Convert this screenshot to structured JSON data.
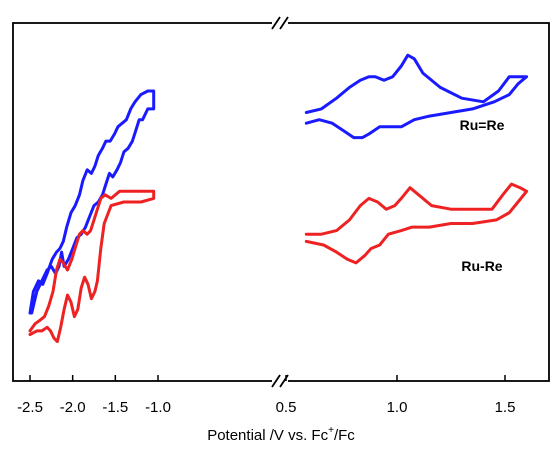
{
  "chart_data": {
    "type": "line",
    "xlabel": "Potential /V vs. Fc",
    "xlabel_sup": "+",
    "xlabel_tail": "/Fc",
    "x_axis_break": true,
    "left_panel": {
      "xlim": [
        -2.5,
        0.5
      ],
      "ticks": [
        {
          "value": -2.5,
          "label": "-2.5"
        },
        {
          "value": -2.0,
          "label": "-2.0"
        },
        {
          "value": -1.5,
          "label": "-1.5"
        },
        {
          "value": -1.0,
          "label": "-1.0"
        }
      ],
      "edge_label": "0.5"
    },
    "right_panel": {
      "xlim": [
        0.5,
        1.6
      ],
      "ticks": [
        {
          "value": 1.0,
          "label": "1.0"
        },
        {
          "value": 1.5,
          "label": "1.5"
        }
      ]
    },
    "series": [
      {
        "name": "Ru=Re",
        "color": "#1a1aff",
        "left_cathodic": [
          [
            -2.5,
            0.81
          ],
          [
            -2.46,
            0.75
          ],
          [
            -2.4,
            0.72
          ],
          [
            -2.35,
            0.73
          ],
          [
            -2.3,
            0.7
          ],
          [
            -2.24,
            0.66
          ],
          [
            -2.19,
            0.64
          ],
          [
            -2.15,
            0.63
          ],
          [
            -2.11,
            0.61
          ],
          [
            -2.07,
            0.57
          ],
          [
            -2.02,
            0.53
          ],
          [
            -1.97,
            0.51
          ],
          [
            -1.92,
            0.48
          ],
          [
            -1.88,
            0.44
          ],
          [
            -1.83,
            0.41
          ],
          [
            -1.78,
            0.42
          ],
          [
            -1.74,
            0.4
          ],
          [
            -1.7,
            0.37
          ],
          [
            -1.65,
            0.35
          ],
          [
            -1.61,
            0.33
          ],
          [
            -1.56,
            0.33
          ],
          [
            -1.51,
            0.31
          ],
          [
            -1.47,
            0.29
          ],
          [
            -1.42,
            0.28
          ],
          [
            -1.37,
            0.27
          ],
          [
            -1.32,
            0.24
          ],
          [
            -1.27,
            0.22
          ],
          [
            -1.2,
            0.2
          ],
          [
            -1.12,
            0.19
          ],
          [
            -1.05,
            0.19
          ]
        ],
        "left_anodic": [
          [
            -1.05,
            0.24
          ],
          [
            -1.12,
            0.24
          ],
          [
            -1.18,
            0.27
          ],
          [
            -1.22,
            0.27
          ],
          [
            -1.26,
            0.3
          ],
          [
            -1.3,
            0.33
          ],
          [
            -1.35,
            0.35
          ],
          [
            -1.4,
            0.36
          ],
          [
            -1.44,
            0.39
          ],
          [
            -1.48,
            0.41
          ],
          [
            -1.53,
            0.43
          ],
          [
            -1.57,
            0.42
          ],
          [
            -1.61,
            0.45
          ],
          [
            -1.65,
            0.48
          ],
          [
            -1.7,
            0.5
          ],
          [
            -1.75,
            0.51
          ],
          [
            -1.8,
            0.54
          ],
          [
            -1.85,
            0.57
          ],
          [
            -1.9,
            0.59
          ],
          [
            -1.95,
            0.6
          ],
          [
            -2.0,
            0.63
          ],
          [
            -2.05,
            0.66
          ],
          [
            -2.1,
            0.68
          ],
          [
            -2.13,
            0.64
          ],
          [
            -2.16,
            0.68
          ],
          [
            -2.2,
            0.7
          ],
          [
            -2.25,
            0.68
          ],
          [
            -2.3,
            0.69
          ],
          [
            -2.36,
            0.72
          ],
          [
            -2.42,
            0.75
          ],
          [
            -2.48,
            0.81
          ],
          [
            -2.5,
            0.81
          ]
        ],
        "right_anodic": [
          [
            0.58,
            0.25
          ],
          [
            0.65,
            0.24
          ],
          [
            0.72,
            0.21
          ],
          [
            0.78,
            0.18
          ],
          [
            0.83,
            0.16
          ],
          [
            0.87,
            0.15
          ],
          [
            0.9,
            0.15
          ],
          [
            0.94,
            0.16
          ],
          [
            0.98,
            0.15
          ],
          [
            1.02,
            0.12
          ],
          [
            1.05,
            0.09
          ],
          [
            1.08,
            0.1
          ],
          [
            1.12,
            0.14
          ],
          [
            1.2,
            0.18
          ],
          [
            1.3,
            0.21
          ],
          [
            1.4,
            0.22
          ],
          [
            1.47,
            0.19
          ],
          [
            1.52,
            0.15
          ],
          [
            1.56,
            0.15
          ],
          [
            1.6,
            0.15
          ]
        ],
        "right_cathodic": [
          [
            1.6,
            0.15
          ],
          [
            1.56,
            0.17
          ],
          [
            1.52,
            0.2
          ],
          [
            1.45,
            0.22
          ],
          [
            1.35,
            0.24
          ],
          [
            1.25,
            0.25
          ],
          [
            1.15,
            0.26
          ],
          [
            1.08,
            0.27
          ],
          [
            1.02,
            0.29
          ],
          [
            0.97,
            0.29
          ],
          [
            0.92,
            0.29
          ],
          [
            0.87,
            0.31
          ],
          [
            0.84,
            0.32
          ],
          [
            0.8,
            0.32
          ],
          [
            0.75,
            0.3
          ],
          [
            0.7,
            0.28
          ],
          [
            0.64,
            0.27
          ],
          [
            0.58,
            0.28
          ]
        ]
      },
      {
        "name": "Ru-Re",
        "color": "#ee2222",
        "left_cathodic": [
          [
            -2.5,
            0.86
          ],
          [
            -2.44,
            0.84
          ],
          [
            -2.38,
            0.83
          ],
          [
            -2.33,
            0.82
          ],
          [
            -2.28,
            0.79
          ],
          [
            -2.23,
            0.75
          ],
          [
            -2.19,
            0.69
          ],
          [
            -2.15,
            0.66
          ],
          [
            -2.11,
            0.67
          ],
          [
            -2.06,
            0.69
          ],
          [
            -2.01,
            0.66
          ],
          [
            -1.96,
            0.62
          ],
          [
            -1.92,
            0.59
          ],
          [
            -1.88,
            0.58
          ],
          [
            -1.83,
            0.59
          ],
          [
            -1.79,
            0.58
          ],
          [
            -1.75,
            0.55
          ],
          [
            -1.71,
            0.52
          ],
          [
            -1.67,
            0.49
          ],
          [
            -1.62,
            0.48
          ],
          [
            -1.55,
            0.49
          ],
          [
            -1.45,
            0.47
          ],
          [
            -1.3,
            0.47
          ],
          [
            -1.15,
            0.47
          ],
          [
            -1.05,
            0.47
          ]
        ],
        "left_anodic": [
          [
            -1.05,
            0.49
          ],
          [
            -1.2,
            0.5
          ],
          [
            -1.4,
            0.5
          ],
          [
            -1.55,
            0.51
          ],
          [
            -1.63,
            0.56
          ],
          [
            -1.67,
            0.63
          ],
          [
            -1.71,
            0.72
          ],
          [
            -1.74,
            0.75
          ],
          [
            -1.78,
            0.77
          ],
          [
            -1.82,
            0.73
          ],
          [
            -1.86,
            0.71
          ],
          [
            -1.9,
            0.74
          ],
          [
            -1.94,
            0.8
          ],
          [
            -1.98,
            0.82
          ],
          [
            -2.02,
            0.78
          ],
          [
            -2.06,
            0.76
          ],
          [
            -2.1,
            0.8
          ],
          [
            -2.14,
            0.85
          ],
          [
            -2.18,
            0.89
          ],
          [
            -2.22,
            0.88
          ],
          [
            -2.26,
            0.86
          ],
          [
            -2.3,
            0.85
          ],
          [
            -2.36,
            0.86
          ],
          [
            -2.42,
            0.86
          ],
          [
            -2.5,
            0.87
          ]
        ],
        "right_anodic": [
          [
            0.58,
            0.59
          ],
          [
            0.65,
            0.59
          ],
          [
            0.72,
            0.58
          ],
          [
            0.78,
            0.55
          ],
          [
            0.83,
            0.51
          ],
          [
            0.87,
            0.49
          ],
          [
            0.91,
            0.5
          ],
          [
            0.95,
            0.52
          ],
          [
            0.99,
            0.51
          ],
          [
            1.02,
            0.49
          ],
          [
            1.06,
            0.46
          ],
          [
            1.1,
            0.48
          ],
          [
            1.16,
            0.51
          ],
          [
            1.25,
            0.52
          ],
          [
            1.35,
            0.52
          ],
          [
            1.44,
            0.52
          ],
          [
            1.49,
            0.48
          ],
          [
            1.53,
            0.45
          ],
          [
            1.57,
            0.46
          ],
          [
            1.6,
            0.47
          ]
        ],
        "right_cathodic": [
          [
            1.6,
            0.47
          ],
          [
            1.56,
            0.5
          ],
          [
            1.52,
            0.53
          ],
          [
            1.46,
            0.55
          ],
          [
            1.35,
            0.56
          ],
          [
            1.25,
            0.56
          ],
          [
            1.15,
            0.57
          ],
          [
            1.07,
            0.57
          ],
          [
            1.02,
            0.58
          ],
          [
            0.96,
            0.59
          ],
          [
            0.92,
            0.62
          ],
          [
            0.88,
            0.63
          ],
          [
            0.85,
            0.65
          ],
          [
            0.81,
            0.67
          ],
          [
            0.77,
            0.66
          ],
          [
            0.72,
            0.64
          ],
          [
            0.66,
            0.62
          ],
          [
            0.58,
            0.61
          ]
        ]
      }
    ]
  }
}
